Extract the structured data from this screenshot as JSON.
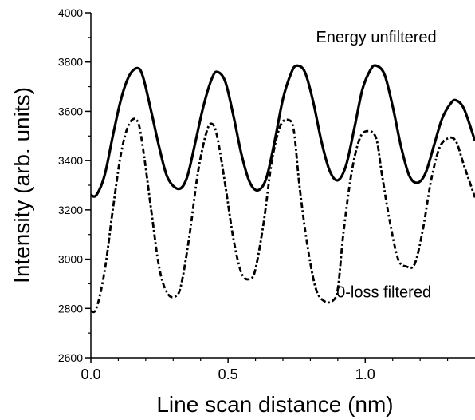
{
  "chart_data": {
    "type": "line",
    "title": "",
    "xlabel": "Line scan distance (nm)",
    "ylabel": "Intensity (arb. units)",
    "xlim": [
      0.0,
      1.4
    ],
    "ylim": [
      2600,
      4000
    ],
    "x_ticks": [
      "0.0",
      "0.5",
      "1.0"
    ],
    "x_tick_values": [
      0.0,
      0.5,
      1.0
    ],
    "y_ticks": [
      "2600",
      "2800",
      "3000",
      "3200",
      "3400",
      "3600",
      "3800",
      "4000"
    ],
    "y_tick_values": [
      2600,
      2800,
      3000,
      3200,
      3400,
      3600,
      3800,
      4000
    ],
    "grid": false,
    "annotations": [
      {
        "text": "Energy unfiltered",
        "x": 1.04,
        "y": 3880
      },
      {
        "text": "0-loss filtered",
        "x": 0.895,
        "y": 2845
      }
    ],
    "series": [
      {
        "style": "solid",
        "color": "#000000",
        "x": [
          0.0,
          0.02,
          0.05,
          0.08,
          0.11,
          0.14,
          0.17,
          0.19,
          0.22,
          0.25,
          0.28,
          0.32,
          0.35,
          0.38,
          0.41,
          0.44,
          0.46,
          0.49,
          0.52,
          0.55,
          0.58,
          0.61,
          0.64,
          0.67,
          0.7,
          0.73,
          0.75,
          0.78,
          0.81,
          0.84,
          0.87,
          0.9,
          0.93,
          0.96,
          0.99,
          1.02,
          1.04,
          1.07,
          1.1,
          1.13,
          1.16,
          1.19,
          1.22,
          1.25,
          1.28,
          1.31,
          1.33,
          1.36,
          1.4
        ],
        "y": [
          3260,
          3260,
          3340,
          3500,
          3650,
          3745,
          3775,
          3740,
          3600,
          3450,
          3330,
          3285,
          3330,
          3470,
          3620,
          3730,
          3760,
          3720,
          3580,
          3420,
          3310,
          3280,
          3330,
          3480,
          3650,
          3755,
          3785,
          3760,
          3640,
          3480,
          3360,
          3320,
          3380,
          3530,
          3690,
          3770,
          3785,
          3750,
          3620,
          3460,
          3340,
          3310,
          3350,
          3460,
          3570,
          3630,
          3645,
          3610,
          3480
        ]
      },
      {
        "style": "dash-dot",
        "color": "#000000",
        "x": [
          0.0,
          0.02,
          0.05,
          0.08,
          0.11,
          0.14,
          0.17,
          0.19,
          0.22,
          0.25,
          0.28,
          0.31,
          0.33,
          0.36,
          0.39,
          0.42,
          0.44,
          0.46,
          0.49,
          0.52,
          0.55,
          0.58,
          0.6,
          0.63,
          0.66,
          0.69,
          0.72,
          0.74,
          0.76,
          0.79,
          0.82,
          0.85,
          0.88,
          0.9,
          0.92,
          0.95,
          0.98,
          1.01,
          1.04,
          1.06,
          1.09,
          1.12,
          1.15,
          1.18,
          1.21,
          1.24,
          1.27,
          1.3,
          1.33,
          1.36,
          1.4
        ],
        "y": [
          2790,
          2800,
          2950,
          3200,
          3430,
          3550,
          3560,
          3450,
          3200,
          2960,
          2860,
          2850,
          2900,
          3100,
          3350,
          3510,
          3550,
          3500,
          3300,
          3080,
          2940,
          2920,
          2960,
          3150,
          3400,
          3540,
          3565,
          3520,
          3300,
          3050,
          2880,
          2830,
          2830,
          2880,
          3100,
          3350,
          3490,
          3520,
          3490,
          3350,
          3150,
          3000,
          2970,
          2980,
          3120,
          3320,
          3450,
          3490,
          3480,
          3380,
          3250
        ]
      }
    ]
  }
}
